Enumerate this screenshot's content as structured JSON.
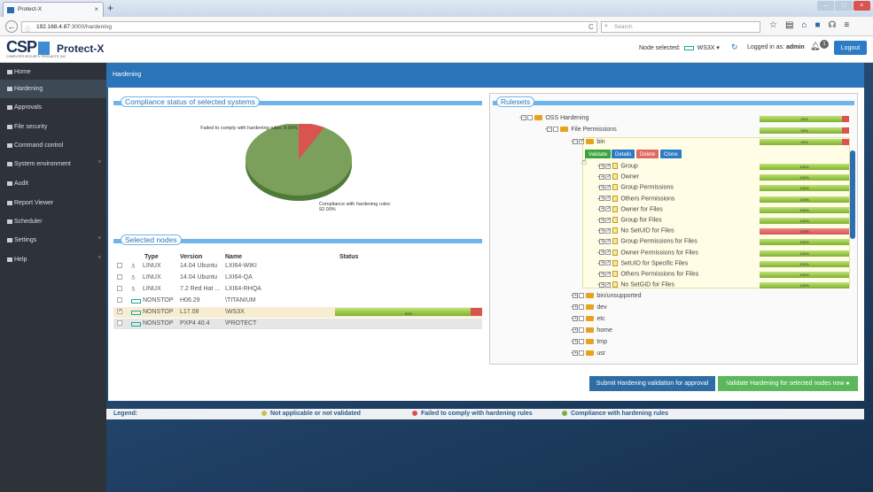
{
  "browser": {
    "tab_title": "Protect-X",
    "url_host": "192.168.4.87",
    "url_rest": ":3000/hardening",
    "search_placeholder": "Search"
  },
  "header": {
    "brand": "CSP",
    "brand_sub": "COMPUTER SECURITY PRODUCTS, INC",
    "product": "Protect-X",
    "node_selected_label": "Node selected:",
    "node_selected_value": "WS3X",
    "logged_in_label": "Logged in as:",
    "user": "admin",
    "notif_count": "1",
    "logout": "Logout"
  },
  "sidebar": {
    "items": [
      {
        "label": "Home"
      },
      {
        "label": "Hardening"
      },
      {
        "label": "Approvals"
      },
      {
        "label": "File security"
      },
      {
        "label": "Command control"
      },
      {
        "label": "System environment"
      },
      {
        "label": "Audit"
      },
      {
        "label": "Report Viewer"
      },
      {
        "label": "Scheduler"
      },
      {
        "label": "Settings"
      },
      {
        "label": "Help"
      }
    ]
  },
  "page": {
    "title": "Hardening"
  },
  "compliance": {
    "title": "Compliance status of selected systems",
    "fail_label": "Failed to comply with hardening rules: 8.00%",
    "pass_label": "Compliance with hardening rules: 92.00%",
    "fail_pct": 8,
    "pass_pct": 92,
    "colors": {
      "fail": "#d9534f",
      "pass": "#7ba05b"
    }
  },
  "nodes": {
    "title": "Selected nodes",
    "headers": {
      "type": "Type",
      "version": "Version",
      "name": "Name",
      "status": "Status"
    },
    "rows": [
      {
        "type": "LINUX",
        "version": "14.04 Ubuntu",
        "name": "LXI64-WIKI",
        "checked": false
      },
      {
        "type": "LINUX",
        "version": "14.04 Ubuntu",
        "name": "LXI64-QA",
        "checked": false
      },
      {
        "type": "LINUX",
        "version": "7.2 Red Hat ...",
        "name": "LXI64-RHQA",
        "checked": false
      },
      {
        "type": "NONSTOP",
        "version": "H06.29",
        "name": "\\TITANIUM",
        "checked": false
      },
      {
        "type": "NONSTOP",
        "version": "L17.08",
        "name": "\\WS3X",
        "checked": true,
        "status": "92%",
        "status_pct": 92
      },
      {
        "type": "NONSTOP",
        "version": "PXP4 40.4",
        "name": "\\PROTECT",
        "checked": false
      }
    ]
  },
  "rulesets": {
    "title": "Rulesets",
    "root": {
      "label": "OSS Hardening",
      "pct": "92%"
    },
    "file_permissions": {
      "label": "File Permissions",
      "pct": "92%"
    },
    "bin": {
      "label": "bin",
      "pct": "92%"
    },
    "actions": {
      "validate": "Validate",
      "details": "Details",
      "delete": "Delete",
      "clone": "Clone"
    },
    "rules": [
      {
        "label": "Group",
        "pct": "100%",
        "fail": false
      },
      {
        "label": "Owner",
        "pct": "100%",
        "fail": false
      },
      {
        "label": "Group Permissions",
        "pct": "100%",
        "fail": false
      },
      {
        "label": "Others Permissions",
        "pct": "100%",
        "fail": false
      },
      {
        "label": "Owner for Files",
        "pct": "100%",
        "fail": false
      },
      {
        "label": "Group for Files",
        "pct": "100%",
        "fail": false
      },
      {
        "label": "No SetUID for Files",
        "pct": "100%",
        "fail": true
      },
      {
        "label": "Group Permissions for Files",
        "pct": "100%",
        "fail": false
      },
      {
        "label": "Owner Permissions for Files",
        "pct": "100%",
        "fail": false
      },
      {
        "label": "SetUID for Specific Files",
        "pct": "100%",
        "fail": false
      },
      {
        "label": "Others Permissions for Files",
        "pct": "100%",
        "fail": false
      },
      {
        "label": "No SetGID for Files",
        "pct": "100%",
        "fail": false
      }
    ],
    "folders": [
      {
        "label": "bin/unsupported"
      },
      {
        "label": "dev"
      },
      {
        "label": "etc"
      },
      {
        "label": "home"
      },
      {
        "label": "tmp"
      },
      {
        "label": "usr"
      }
    ]
  },
  "actions": {
    "submit": "Submit Hardening validation for approval",
    "validate_now": "Validate Hardening for selected nodes now"
  },
  "legend": {
    "label": "Legend:",
    "na": "Not applicable or not validated",
    "fail": "Failed to comply with hardening rules",
    "pass": "Compliance with hardening rules",
    "colors": {
      "na": "#c8c050",
      "fail": "#d9534f",
      "pass": "#6fb04a"
    }
  }
}
